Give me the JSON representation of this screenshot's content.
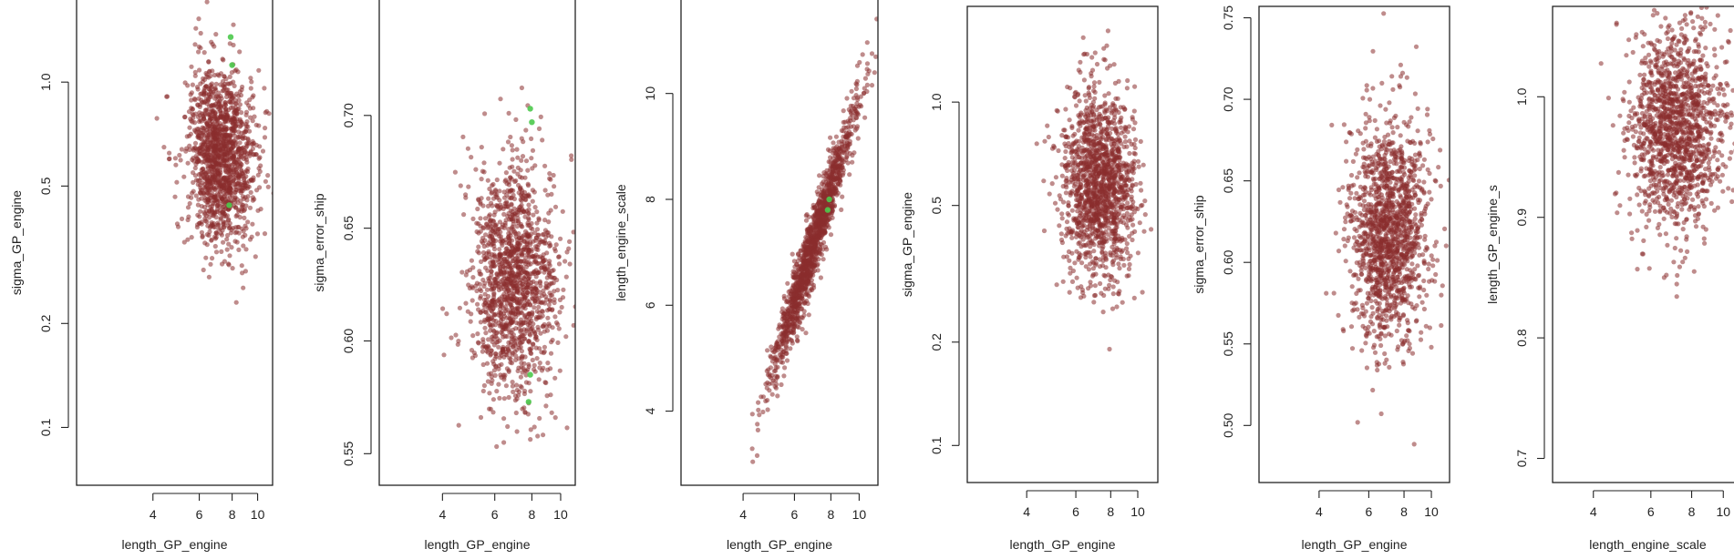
{
  "colors": {
    "point": "#8B2E2E",
    "highlight": "#4CC94C",
    "frame": "#222222"
  },
  "chart_data": [
    {
      "type": "scatter",
      "xlabel": "length_GP_engine",
      "ylabel": "sigma_GP_engine",
      "x_scale": "log",
      "y_scale": "log",
      "xlim": [
        2.05,
        11.4
      ],
      "ylim": [
        0.068,
        1.75
      ],
      "x_ticks": [
        4,
        6,
        8,
        10
      ],
      "x_tick_labels": [
        "4",
        "6",
        "8",
        "10"
      ],
      "y_ticks": [
        0.1,
        0.2,
        0.5,
        1.0
      ],
      "y_tick_labels": [
        "0.1",
        "0.2",
        "0.5",
        "1.0"
      ],
      "cloud": {
        "n": 1400,
        "x_center": 7.3,
        "x_spread": 0.15,
        "y_center": 0.6,
        "y_spread": 0.3,
        "correlation": -0.1
      },
      "highlight_points": [
        {
          "x": 7.9,
          "y": 1.35
        },
        {
          "x": 8.0,
          "y": 1.12
        },
        {
          "x": 7.8,
          "y": 0.44
        }
      ],
      "grid": false,
      "legend": "none"
    },
    {
      "type": "scatter",
      "xlabel": "length_GP_engine",
      "ylabel": "sigma_error_ship",
      "x_scale": "log",
      "y_scale": "linear",
      "xlim": [
        2.45,
        11.2
      ],
      "ylim": [
        0.536,
        0.752
      ],
      "x_ticks": [
        4,
        6,
        8,
        10
      ],
      "x_tick_labels": [
        "4",
        "6",
        "8",
        "10"
      ],
      "y_ticks": [
        0.55,
        0.6,
        0.65,
        0.7
      ],
      "y_tick_labels": [
        "0.55",
        "0.60",
        "0.65",
        "0.70"
      ],
      "cloud": {
        "n": 1400,
        "x_center": 7.0,
        "x_spread": 0.17,
        "y_center": 0.628,
        "y_spread": 0.025,
        "correlation": 0.0
      },
      "highlight_points": [
        {
          "x": 7.9,
          "y": 0.703
        },
        {
          "x": 8.0,
          "y": 0.697
        },
        {
          "x": 7.9,
          "y": 0.585
        },
        {
          "x": 7.8,
          "y": 0.573
        }
      ],
      "grid": false,
      "legend": "none"
    },
    {
      "type": "scatter",
      "xlabel": "length_GP_engine",
      "ylabel": "length_engine_scale",
      "x_scale": "log",
      "y_scale": "linear",
      "xlim": [
        2.45,
        11.6
      ],
      "ylim": [
        2.6,
        11.8
      ],
      "x_ticks": [
        4,
        6,
        8,
        10
      ],
      "x_tick_labels": [
        "4",
        "6",
        "8",
        "10"
      ],
      "y_ticks": [
        4,
        6,
        8,
        10
      ],
      "y_tick_labels": [
        "4",
        "6",
        "8",
        "10"
      ],
      "cloud": {
        "n": 1400,
        "x_center": 7.0,
        "x_spread": 0.17,
        "y_center": 7.2,
        "y_spread": 1.3,
        "correlation": 0.97
      },
      "highlight_points": [
        {
          "x": 7.9,
          "y": 8.0
        },
        {
          "x": 7.8,
          "y": 7.8
        }
      ],
      "grid": false,
      "legend": "none"
    },
    {
      "type": "scatter",
      "xlabel": "length_GP_engine",
      "ylabel": "sigma_GP_engine",
      "x_scale": "log",
      "y_scale": "log",
      "xlim": [
        2.45,
        11.8
      ],
      "ylim": [
        0.078,
        1.9
      ],
      "x_ticks": [
        4,
        6,
        8,
        10
      ],
      "x_tick_labels": [
        "4",
        "6",
        "8",
        "10"
      ],
      "y_ticks": [
        0.1,
        0.2,
        0.5,
        1.0
      ],
      "y_tick_labels": [
        "0.1",
        "0.2",
        "0.5",
        "1.0"
      ],
      "cloud": {
        "n": 1400,
        "x_center": 7.2,
        "x_spread": 0.15,
        "y_center": 0.58,
        "y_spread": 0.32,
        "correlation": -0.08
      },
      "highlight_points": [],
      "grid": false,
      "legend": "none"
    },
    {
      "type": "scatter",
      "xlabel": "length_GP_engine",
      "ylabel": "sigma_error_ship",
      "x_scale": "log",
      "y_scale": "linear",
      "xlim": [
        2.45,
        11.6
      ],
      "ylim": [
        0.465,
        0.757
      ],
      "x_ticks": [
        4,
        6,
        8,
        10
      ],
      "x_tick_labels": [
        "4",
        "6",
        "8",
        "10"
      ],
      "y_ticks": [
        0.5,
        0.55,
        0.6,
        0.65,
        0.7,
        0.75
      ],
      "y_tick_labels": [
        "0.50",
        "0.55",
        "0.60",
        "0.65",
        "0.70",
        "0.75"
      ],
      "cloud": {
        "n": 1400,
        "x_center": 7.1,
        "x_spread": 0.16,
        "y_center": 0.62,
        "y_spread": 0.034,
        "correlation": 0.0
      },
      "highlight_points": [],
      "grid": false,
      "legend": "none"
    },
    {
      "type": "scatter",
      "xlabel": "length_engine_scale",
      "ylabel": "length_GP_engine_s",
      "x_scale": "log",
      "y_scale": "linear",
      "xlim": [
        3.0,
        11.5
      ],
      "ylim": [
        0.68,
        1.075
      ],
      "x_ticks": [
        4,
        6,
        8,
        10
      ],
      "x_tick_labels": [
        "4",
        "6",
        "8",
        "10"
      ],
      "y_ticks": [
        0.7,
        0.8,
        0.9,
        1.0
      ],
      "y_tick_labels": [
        "0.7",
        "0.8",
        "0.9",
        "1.0"
      ],
      "cloud": {
        "n": 1400,
        "x_center": 7.3,
        "x_spread": 0.17,
        "y_center": 0.975,
        "y_spread": 0.04,
        "correlation": 0.05
      },
      "highlight_points": [],
      "grid": false,
      "legend": "none"
    }
  ]
}
